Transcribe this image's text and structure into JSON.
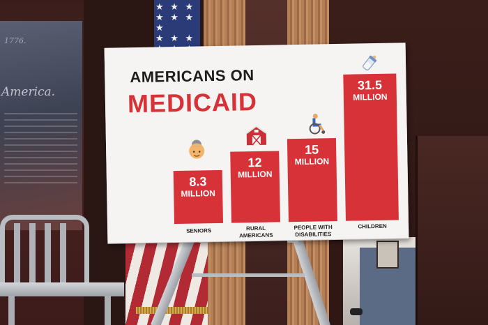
{
  "background": {
    "document_year": "1776.",
    "document_script": "America."
  },
  "sign": {
    "title_line1": "AMERICANS ON",
    "title_line2": "MEDICAID",
    "bar_unit": "MILLION",
    "bars": [
      {
        "value": "8.3",
        "label": "SENIORS",
        "icon": "senior-woman-icon"
      },
      {
        "value": "12",
        "label": "RURAL\nAMERICANS",
        "icon": "barn-icon"
      },
      {
        "value": "15",
        "label": "PEOPLE WITH\nDISABILITIES",
        "icon": "wheelchair-icon"
      },
      {
        "value": "31.5",
        "label": "CHILDREN",
        "icon": "baby-bottle-icon"
      }
    ],
    "colors": {
      "accent": "#d73238",
      "title": "#1d1d1d",
      "board": "#f5f4f2"
    }
  },
  "chart_data": {
    "type": "bar",
    "title": "AMERICANS ON MEDICAID",
    "categories": [
      "SENIORS",
      "RURAL AMERICANS",
      "PEOPLE WITH DISABILITIES",
      "CHILDREN"
    ],
    "values": [
      8.3,
      12,
      15,
      31.5
    ],
    "ylabel": "",
    "xlabel": ""
  }
}
